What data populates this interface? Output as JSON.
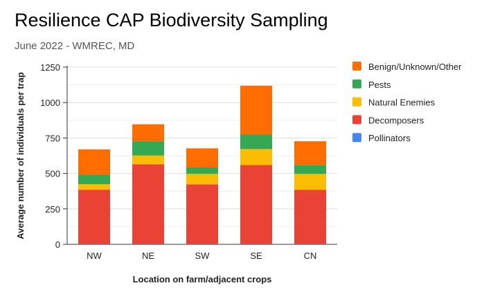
{
  "chart_data": {
    "type": "bar",
    "stacked": true,
    "title": "Resilience CAP Biodiversity Sampling",
    "subtitle": "June 2022 - WMREC, MD",
    "xlabel": "Location on farm/adjacent crops",
    "ylabel": "Average number of individuals per trap",
    "ylim": [
      0,
      1250
    ],
    "yticks": [
      0,
      250,
      500,
      750,
      1000,
      1250
    ],
    "grid": true,
    "legend_position": "right",
    "categories": [
      "NW",
      "NE",
      "SW",
      "SE",
      "CN"
    ],
    "series": [
      {
        "name": "Pollinators",
        "color": "#4285f4",
        "values": [
          2,
          2,
          2,
          2,
          2
        ]
      },
      {
        "name": "Decomposers",
        "color": "#ea4335",
        "values": [
          383,
          563,
          421,
          557,
          383
        ]
      },
      {
        "name": "Natural Enemies",
        "color": "#fbbc04",
        "values": [
          39,
          62,
          74,
          113,
          112
        ]
      },
      {
        "name": "Pests",
        "color": "#34a853",
        "values": [
          67,
          100,
          45,
          102,
          63
        ]
      },
      {
        "name": "Benign/Unknown/Other",
        "color": "#ff6d01",
        "values": [
          179,
          120,
          135,
          345,
          167
        ]
      }
    ]
  }
}
